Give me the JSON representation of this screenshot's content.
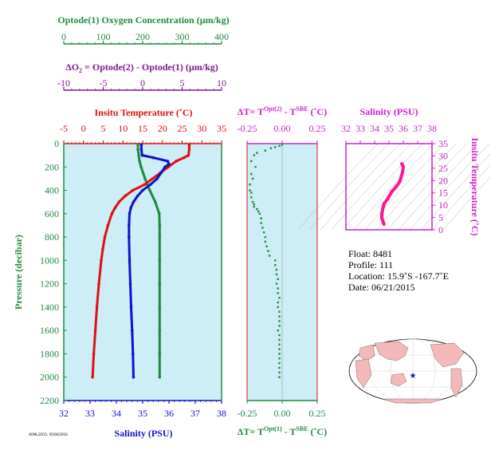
{
  "colors": {
    "oxygen": "#1e8a3c",
    "delta_o2": "#7a1a8a",
    "temperature": "#e01010",
    "salinity": "#1010d0",
    "delta_t": "#1e8a3c",
    "ts_axis": "#cc22cc",
    "ts_curve": "#ff1493",
    "panel_bg": "#cdeef6",
    "land": "#f4b8b8",
    "ocean": "#ffffff"
  },
  "labels": {
    "oxygen_title": "Optode(1) Oxygen Concentration (µm/kg)",
    "delta_o2_title_prefix": "ΔO",
    "delta_o2_title_sub": "2",
    "delta_o2_title_rest": " = Optode(2) - Optode(1)   (µm/kg)",
    "temp_title": "Insitu Temperature (˚C)",
    "salinity_bottom": "Salinity (PSU)",
    "pressure_label": "Pressure (decibar)",
    "dt_top_a": "ΔT= T",
    "dt_top_sup1": "Opt(2)",
    "dt_top_b": " - T",
    "dt_top_sup2": "SBE",
    "dt_top_c": " (˚C)",
    "dt_bot_a": "ΔT= T",
    "dt_bot_sup1": "Opt(1)",
    "dt_bot_b": " - T",
    "dt_bot_sup2": "SBE",
    "dt_bot_c": " (˚C)",
    "ts_salinity": "Salinity (PSU)",
    "ts_temp": "Insitu Temperature (˚C)",
    "small_stamp": "AOML/2015, 05/06/2016"
  },
  "info": {
    "float": "Float:  8481",
    "profile": "Profile:  111",
    "location": "Location:  15.9˚S  -167.7˚E",
    "date": "Date:  06/21/2015"
  },
  "chart_data": [
    {
      "type": "line",
      "name": "main-profile",
      "y_axis": {
        "label": "Pressure (decibar)",
        "range": [
          0,
          2200
        ],
        "inverted": true,
        "ticks": [
          0,
          200,
          400,
          600,
          800,
          1000,
          1200,
          1400,
          1600,
          1800,
          2000,
          2200
        ]
      },
      "axes": {
        "oxygen": {
          "range": [
            0,
            400
          ],
          "ticks": [
            0,
            100,
            200,
            300,
            400
          ]
        },
        "delta_o2": {
          "range": [
            -10,
            10
          ],
          "ticks": [
            -10,
            -5,
            0,
            5,
            10
          ]
        },
        "temperature": {
          "range": [
            -5,
            35
          ],
          "ticks": [
            -5,
            0,
            5,
            10,
            15,
            20,
            25,
            30,
            35
          ]
        },
        "salinity": {
          "range": [
            32,
            38
          ],
          "ticks": [
            32,
            33,
            34,
            35,
            36,
            37,
            38
          ]
        }
      },
      "series": [
        {
          "axis": "oxygen",
          "pressure": [
            10,
            50,
            100,
            150,
            200,
            300,
            400,
            500,
            600,
            700,
            800,
            1000,
            1200,
            1400,
            1600,
            1800,
            2000
          ],
          "values": [
            188,
            188,
            190,
            192,
            196,
            206,
            218,
            232,
            242,
            243,
            243,
            243,
            243,
            243,
            243,
            243,
            243
          ]
        },
        {
          "axis": "temperature",
          "pressure": [
            10,
            50,
            100,
            120,
            150,
            200,
            250,
            300,
            350,
            400,
            450,
            500,
            550,
            600,
            700,
            800,
            900,
            1000,
            1200,
            1400,
            1600,
            1800,
            2000
          ],
          "values": [
            26.8,
            26.8,
            26.6,
            25.5,
            23.5,
            21.5,
            19.5,
            17.5,
            15.5,
            12.5,
            10.5,
            9.0,
            8.0,
            7.2,
            6.2,
            5.4,
            4.9,
            4.5,
            3.9,
            3.4,
            3.0,
            2.6,
            2.3
          ]
        },
        {
          "axis": "salinity",
          "pressure": [
            10,
            50,
            100,
            120,
            150,
            175,
            200,
            250,
            300,
            350,
            400,
            450,
            500,
            550,
            600,
            700,
            800,
            1000,
            1200,
            1400,
            1600,
            1800,
            2000
          ],
          "values": [
            34.95,
            34.95,
            34.98,
            35.4,
            35.95,
            36.0,
            35.85,
            35.7,
            35.55,
            35.3,
            35.0,
            34.8,
            34.65,
            34.55,
            34.5,
            34.48,
            34.48,
            34.5,
            34.53,
            34.56,
            34.6,
            34.63,
            34.65
          ]
        }
      ]
    },
    {
      "type": "scatter",
      "name": "delta-t",
      "x_axis": {
        "range": [
          -0.25,
          0.25
        ],
        "ticks": [
          -0.25,
          0.0,
          0.25
        ]
      },
      "y_axis": {
        "range": [
          0,
          2200
        ],
        "inverted": true
      },
      "points": {
        "pressure": [
          10,
          20,
          30,
          40,
          60,
          80,
          100,
          150,
          200,
          260,
          300,
          350,
          400,
          420,
          460,
          500,
          520,
          540,
          560,
          580,
          600,
          640,
          680,
          720,
          760,
          800,
          840,
          880,
          920,
          960,
          1000,
          1040,
          1080,
          1120,
          1160,
          1200,
          1240,
          1280,
          1320,
          1360,
          1400,
          1440,
          1480,
          1520,
          1560,
          1600,
          1640,
          1680,
          1720,
          1760,
          1800,
          1840,
          1880,
          1920,
          1960,
          2000
        ],
        "values": [
          0.0,
          -0.02,
          -0.05,
          -0.08,
          -0.12,
          -0.18,
          -0.2,
          -0.22,
          -0.19,
          -0.22,
          -0.21,
          -0.23,
          -0.23,
          -0.22,
          -0.22,
          -0.21,
          -0.2,
          -0.2,
          -0.18,
          -0.17,
          -0.16,
          -0.15,
          -0.15,
          -0.14,
          -0.13,
          -0.12,
          -0.12,
          -0.11,
          -0.1,
          -0.09,
          -0.05,
          -0.05,
          -0.04,
          -0.04,
          -0.03,
          -0.04,
          -0.03,
          -0.03,
          -0.02,
          -0.03,
          -0.03,
          -0.02,
          -0.02,
          -0.02,
          -0.02,
          -0.03,
          -0.02,
          -0.02,
          -0.02,
          -0.02,
          -0.02,
          -0.02,
          -0.02,
          -0.02,
          -0.02,
          -0.02
        ]
      }
    },
    {
      "type": "line",
      "name": "ts-diagram",
      "x_axis": {
        "label": "Salinity (PSU)",
        "range": [
          32,
          38
        ],
        "ticks": [
          32,
          33,
          34,
          35,
          36,
          37,
          38
        ]
      },
      "y_axis": {
        "label": "Insitu Temperature (˚C)",
        "range": [
          0,
          35
        ],
        "ticks": [
          0,
          5,
          10,
          15,
          20,
          25,
          30,
          35
        ]
      },
      "series": [
        {
          "salinity": [
            34.65,
            34.6,
            34.55,
            34.5,
            34.5,
            34.55,
            34.65,
            34.9,
            35.2,
            35.5,
            35.75,
            35.85,
            35.95,
            36.0,
            35.9
          ],
          "temperature": [
            2.3,
            3.0,
            3.9,
            4.9,
            6.2,
            8.0,
            10.5,
            12.5,
            15.5,
            17.5,
            19.5,
            21.5,
            23.5,
            25.5,
            26.8
          ]
        }
      ]
    }
  ]
}
